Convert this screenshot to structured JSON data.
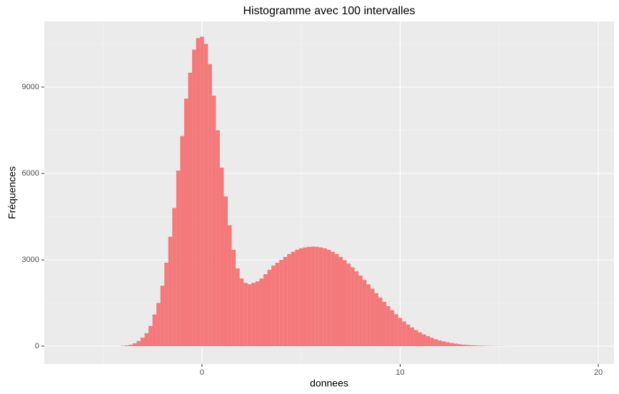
{
  "chart_data": {
    "type": "histogram",
    "title": "Histogramme avec 100 intervalles",
    "x_label": "donnees",
    "y_label": "Fréquences",
    "color": "#f47374",
    "grid": true,
    "xlim": [
      -7.96,
      20.79
    ],
    "ylim": [
      -620,
      11281
    ],
    "xticks": [
      0,
      10,
      20
    ],
    "yticks": [
      0,
      3000,
      6000,
      9000
    ],
    "x_minor_ticks": [
      -5,
      5,
      15
    ],
    "y_minor_ticks": [
      1500,
      4500,
      7500,
      10500
    ],
    "bins": [
      -4.1,
      -3.9,
      -3.7,
      -3.5,
      -3.3,
      -3.1,
      -2.9,
      -2.7,
      -2.5,
      -2.3,
      -2.1,
      -1.9,
      -1.7,
      -1.5,
      -1.3,
      -1.1,
      -0.9,
      -0.7,
      -0.5,
      -0.3,
      -0.1,
      0.1,
      0.3,
      0.5,
      0.7,
      0.9,
      1.1,
      1.3,
      1.5,
      1.7,
      1.9,
      2.1,
      2.3,
      2.5,
      2.7,
      2.9,
      3.1,
      3.3,
      3.5,
      3.7,
      3.9,
      4.1,
      4.3,
      4.5,
      4.7,
      4.9,
      5.1,
      5.3,
      5.5,
      5.7,
      5.9,
      6.1,
      6.3,
      6.5,
      6.7,
      6.9,
      7.1,
      7.3,
      7.5,
      7.7,
      7.9,
      8.1,
      8.3,
      8.5,
      8.7,
      8.9,
      9.1,
      9.3,
      9.5,
      9.7,
      9.9,
      10.1,
      10.3,
      10.5,
      10.7,
      10.9,
      11.1,
      11.3,
      11.5,
      11.7,
      11.9,
      12.1,
      12.3,
      12.5,
      12.7,
      12.9,
      13.1,
      13.3,
      13.5,
      13.7,
      13.9,
      14.1,
      14.3,
      14.5,
      14.7,
      14.9,
      15.1,
      15.3,
      15.5,
      15.7,
      15.9
    ],
    "values": [
      10,
      25,
      50,
      100,
      180,
      300,
      450,
      700,
      1100,
      1500,
      2100,
      2900,
      3800,
      4800,
      6100,
      7300,
      8600,
      9500,
      10300,
      10700,
      10750,
      10500,
      9800,
      8700,
      7500,
      6200,
      5200,
      4200,
      3350,
      2700,
      2350,
      2200,
      2150,
      2200,
      2250,
      2350,
      2500,
      2650,
      2800,
      2900,
      3000,
      3100,
      3200,
      3280,
      3350,
      3400,
      3430,
      3450,
      3460,
      3450,
      3430,
      3400,
      3350,
      3280,
      3200,
      3100,
      2990,
      2870,
      2740,
      2600,
      2450,
      2300,
      2150,
      2000,
      1840,
      1690,
      1540,
      1390,
      1250,
      1110,
      980,
      860,
      750,
      650,
      560,
      480,
      410,
      350,
      290,
      240,
      200,
      165,
      135,
      110,
      88,
      70,
      55,
      43,
      33,
      25,
      19,
      14,
      10,
      7,
      5,
      4,
      3,
      2,
      1,
      1
    ]
  }
}
